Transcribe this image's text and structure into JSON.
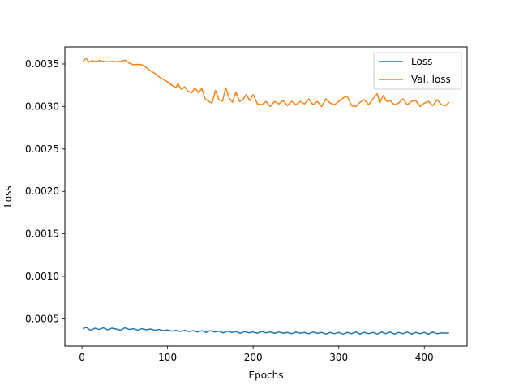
{
  "chart_data": {
    "type": "line",
    "title": "",
    "xlabel": "Epochs",
    "ylabel": "Loss",
    "xlim": [
      -20,
      450
    ],
    "ylim": [
      0.00018,
      0.0037
    ],
    "xticks": [
      0,
      100,
      200,
      300,
      400
    ],
    "xtick_labels": [
      "0",
      "100",
      "200",
      "300",
      "400"
    ],
    "yticks": [
      0.0005,
      0.001,
      0.0015,
      0.002,
      0.0025,
      0.003,
      0.0035
    ],
    "ytick_labels": [
      "0.0005",
      "0.0010",
      "0.0015",
      "0.0020",
      "0.0025",
      "0.0030",
      "0.0035"
    ],
    "grid": false,
    "legend_position": "top-right",
    "series": [
      {
        "name": "Loss",
        "color": "#1f77b4",
        "x": [
          1,
          5,
          10,
          15,
          20,
          25,
          30,
          35,
          40,
          45,
          50,
          55,
          60,
          65,
          70,
          75,
          80,
          85,
          90,
          95,
          100,
          105,
          110,
          115,
          120,
          125,
          130,
          135,
          140,
          145,
          150,
          155,
          160,
          165,
          170,
          175,
          180,
          185,
          190,
          195,
          200,
          205,
          210,
          215,
          220,
          225,
          230,
          235,
          240,
          245,
          250,
          255,
          260,
          265,
          270,
          275,
          280,
          285,
          290,
          295,
          300,
          305,
          310,
          315,
          320,
          325,
          330,
          335,
          340,
          345,
          350,
          355,
          360,
          365,
          370,
          375,
          380,
          385,
          390,
          395,
          400,
          405,
          410,
          415,
          420,
          425,
          429
        ],
        "y": [
          0.000385,
          0.0004,
          0.000365,
          0.00039,
          0.000375,
          0.000395,
          0.00037,
          0.00039,
          0.00038,
          0.000365,
          0.000395,
          0.000375,
          0.000385,
          0.000365,
          0.000385,
          0.00037,
          0.00038,
          0.000365,
          0.000375,
          0.00036,
          0.00037,
          0.000355,
          0.000365,
          0.00035,
          0.000365,
          0.00035,
          0.00036,
          0.000345,
          0.00036,
          0.00034,
          0.00036,
          0.000345,
          0.000355,
          0.000335,
          0.000355,
          0.00034,
          0.00035,
          0.00033,
          0.00035,
          0.000335,
          0.000345,
          0.00033,
          0.00035,
          0.000335,
          0.000345,
          0.00033,
          0.000345,
          0.00033,
          0.00034,
          0.000325,
          0.000345,
          0.00033,
          0.00034,
          0.000325,
          0.000345,
          0.00033,
          0.00034,
          0.00032,
          0.00034,
          0.000325,
          0.00034,
          0.00032,
          0.00034,
          0.000325,
          0.000345,
          0.00032,
          0.00034,
          0.000325,
          0.00034,
          0.00032,
          0.000345,
          0.000325,
          0.000345,
          0.00032,
          0.00034,
          0.000325,
          0.000345,
          0.00032,
          0.00034,
          0.000325,
          0.00034,
          0.00032,
          0.000345,
          0.000325,
          0.000335,
          0.00033,
          0.000335
        ]
      },
      {
        "name": "Val. loss",
        "color": "#ff7f0e",
        "x": [
          1,
          5,
          8,
          12,
          16,
          20,
          25,
          30,
          35,
          40,
          45,
          50,
          55,
          60,
          65,
          70,
          75,
          80,
          85,
          90,
          95,
          100,
          105,
          110,
          112,
          116,
          120,
          124,
          128,
          132,
          136,
          140,
          144,
          148,
          152,
          156,
          160,
          164,
          168,
          172,
          176,
          180,
          184,
          188,
          192,
          196,
          200,
          205,
          210,
          215,
          220,
          225,
          230,
          235,
          240,
          245,
          250,
          255,
          260,
          265,
          270,
          275,
          280,
          285,
          290,
          295,
          300,
          305,
          310,
          315,
          320,
          325,
          330,
          335,
          340,
          345,
          348,
          352,
          356,
          360,
          365,
          370,
          375,
          380,
          385,
          390,
          395,
          400,
          405,
          410,
          415,
          420,
          425,
          429
        ],
        "y": [
          0.00353,
          0.00357,
          0.00352,
          0.00354,
          0.003525,
          0.00354,
          0.00353,
          0.003525,
          0.00353,
          0.003525,
          0.00353,
          0.003545,
          0.00351,
          0.00349,
          0.003495,
          0.00349,
          0.00346,
          0.00342,
          0.00339,
          0.00335,
          0.00332,
          0.00329,
          0.00325,
          0.00322,
          0.00327,
          0.0032,
          0.00323,
          0.00318,
          0.00316,
          0.00322,
          0.00316,
          0.00321,
          0.00309,
          0.00306,
          0.00304,
          0.00319,
          0.00308,
          0.00306,
          0.00322,
          0.0031,
          0.00305,
          0.00317,
          0.00306,
          0.00308,
          0.00314,
          0.00307,
          0.00314,
          0.00303,
          0.00302,
          0.00306,
          0.003,
          0.00306,
          0.00303,
          0.00307,
          0.00301,
          0.00306,
          0.00302,
          0.00306,
          0.00303,
          0.00309,
          0.00302,
          0.00306,
          0.003,
          0.00309,
          0.00304,
          0.00302,
          0.00306,
          0.0031,
          0.00312,
          0.00301,
          0.003,
          0.00305,
          0.00308,
          0.00302,
          0.00309,
          0.00315,
          0.00304,
          0.00313,
          0.00306,
          0.00307,
          0.00302,
          0.00304,
          0.00309,
          0.00302,
          0.00306,
          0.00307,
          0.003,
          0.00304,
          0.00306,
          0.00301,
          0.00308,
          0.00302,
          0.00301,
          0.00305
        ]
      }
    ]
  }
}
